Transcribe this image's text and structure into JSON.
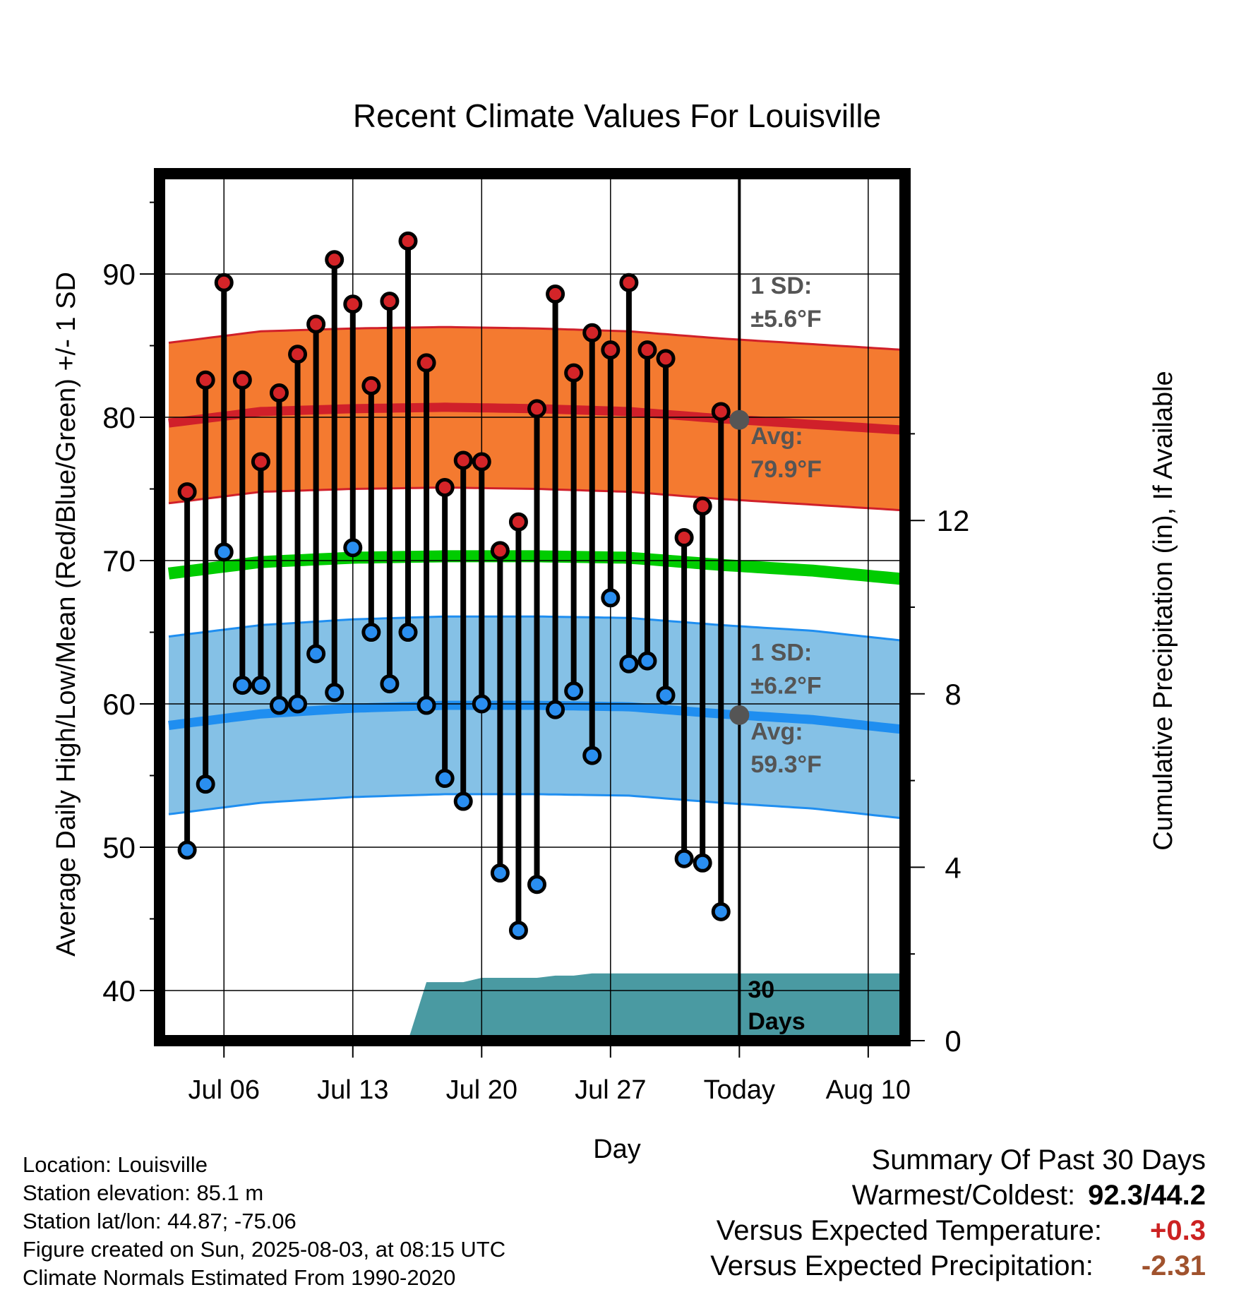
{
  "chart_data": {
    "type": "line",
    "title": "Recent Climate Values For Louisville",
    "xlabel": "Day",
    "ylabel_left": "Average Daily High/Low/Mean (Red/Blue/Green) +/- 1 SD",
    "ylabel_right": "Cumulative Precipitation (in), If Available",
    "xlim": [
      -0.5,
      40
    ],
    "ylim": [
      36.5,
      97
    ],
    "ylim_right": [
      0,
      20
    ],
    "x_ticks": [
      {
        "x": 3,
        "label": "Jul 06"
      },
      {
        "x": 10,
        "label": "Jul 13"
      },
      {
        "x": 17,
        "label": "Jul 20"
      },
      {
        "x": 24,
        "label": "Jul 27"
      },
      {
        "x": 31,
        "label": "Today"
      },
      {
        "x": 38,
        "label": "Aug 10"
      }
    ],
    "y_ticks": [
      40,
      50,
      60,
      70,
      80,
      90
    ],
    "y_ticks_right": [
      0,
      4,
      8,
      12
    ],
    "grid": true,
    "today_x": 31,
    "daily": {
      "x": [
        1,
        2,
        3,
        4,
        5,
        6,
        7,
        8,
        9,
        10,
        11,
        12,
        13,
        14,
        15,
        16,
        17,
        18,
        19,
        20,
        21,
        22,
        23,
        24,
        25,
        26,
        27,
        28,
        29,
        30
      ],
      "high": [
        74.8,
        82.6,
        89.4,
        82.6,
        76.9,
        81.7,
        84.4,
        86.5,
        91.0,
        87.9,
        82.2,
        88.1,
        92.3,
        83.8,
        75.1,
        77.0,
        76.9,
        70.7,
        72.7,
        80.6,
        88.6,
        83.1,
        85.9,
        84.7,
        89.4,
        84.7,
        84.1,
        71.6,
        73.8,
        80.4
      ],
      "low": [
        49.8,
        54.4,
        70.6,
        61.3,
        61.3,
        59.9,
        60.0,
        63.5,
        60.8,
        70.9,
        65.0,
        61.4,
        65.0,
        59.9,
        54.8,
        53.2,
        60.0,
        48.2,
        44.2,
        47.4,
        59.6,
        60.9,
        56.4,
        67.4,
        62.8,
        63.0,
        60.6,
        49.2,
        48.9,
        45.5
      ]
    },
    "normals": {
      "x": [
        0,
        5,
        10,
        15,
        20,
        25,
        30,
        35,
        40
      ],
      "high_avg": [
        79.6,
        80.4,
        80.6,
        80.7,
        80.6,
        80.4,
        79.9,
        79.5,
        79.1
      ],
      "high_sd": 5.6,
      "low_avg": [
        58.5,
        59.3,
        59.7,
        59.9,
        59.9,
        59.8,
        59.3,
        58.9,
        58.2
      ],
      "low_sd": 6.2,
      "mean_avg": [
        69.1,
        69.9,
        70.2,
        70.3,
        70.3,
        70.2,
        69.7,
        69.3,
        68.7
      ]
    },
    "precipitation": {
      "x": [
        13,
        14,
        15,
        16,
        17,
        18,
        19,
        20,
        21,
        22,
        23,
        24,
        25,
        26,
        27,
        28,
        29,
        30,
        31,
        40
      ],
      "cumulative": [
        0,
        1.35,
        1.35,
        1.35,
        1.45,
        1.45,
        1.45,
        1.45,
        1.5,
        1.5,
        1.55,
        1.55,
        1.55,
        1.55,
        1.55,
        1.55,
        1.55,
        1.55,
        1.55,
        1.55
      ]
    },
    "annotations": {
      "high_sd_line1": "1 SD:",
      "high_sd_line2": "±5.6°F",
      "high_avg_line1": "Avg:",
      "high_avg_line2": "79.9°F",
      "low_sd_line1": "1 SD:",
      "low_sd_line2": "±6.2°F",
      "low_avg_line1": "Avg:",
      "low_avg_line2": "59.3°F",
      "days_line1": "30",
      "days_line2": "Days"
    },
    "colors": {
      "high_band": "#f47a30",
      "high_line": "#d0202a",
      "low_band": "#85c1e6",
      "low_line": "#1f8ef0",
      "mean_line": "#00cc00",
      "precip_fill": "#4a9aa2",
      "high_marker": "#d42428",
      "low_marker": "#2a8ef0",
      "today_marker": "#555555",
      "annotation_text": "#555555"
    }
  },
  "footer": {
    "location": "Location: Louisville",
    "elevation": "Station elevation: 85.1 m",
    "latlon": "Station lat/lon: 44.87; -75.06",
    "created": "Figure created on Sun, 2025-08-03, at 08:15 UTC",
    "normals": "Climate Normals Estimated From 1990-2020"
  },
  "summary": {
    "title": "Summary Of Past 30 Days",
    "warm_cold_label": "Warmest/Coldest:",
    "warm_cold_value": "92.3/44.2",
    "temp_label": "Versus Expected Temperature:",
    "temp_value": "+0.3",
    "temp_color": "#cc2222",
    "precip_label": "Versus Expected Precipitation:",
    "precip_value": "-2.31",
    "precip_color": "#a0522d"
  }
}
